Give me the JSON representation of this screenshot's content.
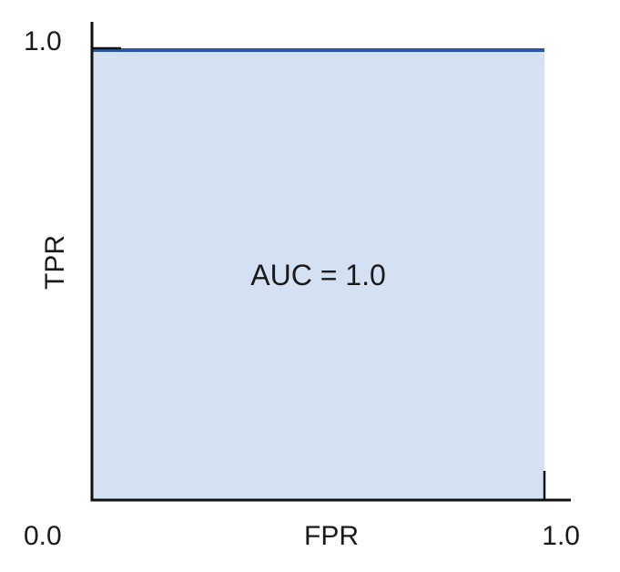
{
  "chart_data": {
    "type": "area",
    "title": "",
    "xlabel": "FPR",
    "ylabel": "TPR",
    "xlim": [
      0.0,
      1.0
    ],
    "ylim": [
      0.0,
      1.0
    ],
    "grid": false,
    "x_tick_labels": [
      {
        "value": 0.0,
        "label": "0.0"
      },
      {
        "value": 1.0,
        "label": "1.0"
      }
    ],
    "y_tick_labels": [
      {
        "value": 1.0,
        "label": "1.0"
      }
    ],
    "series": [
      {
        "x": [
          0.0,
          1.0
        ],
        "y": [
          1.0,
          1.0
        ],
        "fill": true
      }
    ],
    "annotations": [
      {
        "text": "AUC = 1.0",
        "x": 0.5,
        "y": 0.5
      }
    ],
    "colors": {
      "line": "#2b55a8",
      "fill": "#d3e1f3",
      "axis": "#111111"
    }
  }
}
